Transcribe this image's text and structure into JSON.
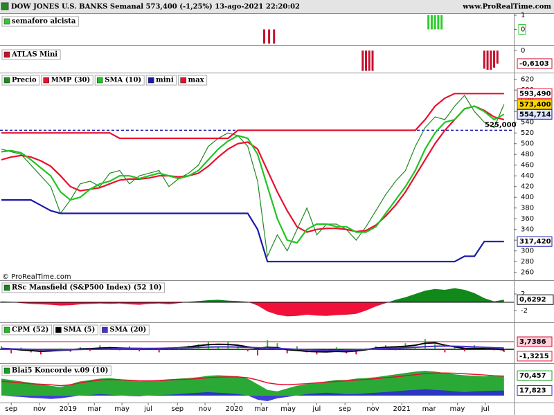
{
  "header": {
    "title": "DOW JONES U.S. BANKS Semanal 573,400 (-1,25%) 13-ago-2021 22:20:02",
    "site": "www.ProRealTime.com",
    "watermark": "© ProRealTime.com"
  },
  "x_axis": {
    "xlim": [
      0,
      156
    ],
    "xticks": [
      {
        "value": 3,
        "label": "sep"
      },
      {
        "value": 11.6,
        "label": "nov"
      },
      {
        "value": 20.3,
        "label": "2019"
      },
      {
        "value": 28.3,
        "label": "mar"
      },
      {
        "value": 36.7,
        "label": "may"
      },
      {
        "value": 44.7,
        "label": "jul"
      },
      {
        "value": 53.6,
        "label": "sep"
      },
      {
        "value": 62,
        "label": "nov"
      },
      {
        "value": 70.9,
        "label": "2020"
      },
      {
        "value": 79.1,
        "label": "mar"
      },
      {
        "value": 87.3,
        "label": "may"
      },
      {
        "value": 96,
        "label": "jul"
      },
      {
        "value": 104.6,
        "label": "sep"
      },
      {
        "value": 113.1,
        "label": "nov"
      },
      {
        "value": 121.9,
        "label": "2021"
      },
      {
        "value": 130.2,
        "label": "mar"
      },
      {
        "value": 138.8,
        "label": "may"
      },
      {
        "value": 147.3,
        "label": "jul"
      }
    ],
    "x": [
      0,
      3,
      6,
      9,
      12,
      15,
      18,
      21,
      24,
      27,
      30,
      33,
      36,
      39,
      42,
      45,
      48,
      51,
      54,
      57,
      60,
      63,
      66,
      69,
      72,
      75,
      78,
      81,
      84,
      87,
      90,
      93,
      96,
      99,
      102,
      105,
      108,
      111,
      114,
      117,
      120,
      123,
      126,
      129,
      132,
      135,
      138,
      141,
      144,
      147,
      150,
      153
    ]
  },
  "chart_data": [
    {
      "type": "bar",
      "title": "semaforo alcista",
      "color": "#2ecc2e",
      "ylim": [
        -1,
        1
      ],
      "yticks": [
        1,
        0
      ],
      "x": [
        80,
        81.5,
        83,
        130,
        131,
        132,
        133,
        134
      ],
      "values": [
        -1,
        -1,
        -1,
        1,
        1,
        1,
        1,
        1
      ],
      "colors": [
        "#c8102e",
        "#c8102e",
        "#c8102e",
        "#2ecc2e",
        "#2ecc2e",
        "#2ecc2e",
        "#2ecc2e",
        "#2ecc2e"
      ]
    },
    {
      "type": "bar",
      "title": "ATLAS Mini",
      "color": "#c8102e",
      "ylim": [
        -1,
        0.1
      ],
      "yticks": [
        0
      ],
      "x": [
        110,
        111,
        112,
        113,
        147,
        148,
        149,
        150,
        151
      ],
      "values": [
        -0.95,
        -0.95,
        -0.95,
        -0.95,
        -0.85,
        -0.9,
        -0.9,
        -0.8,
        -0.6103
      ],
      "last_label": "-0,6103"
    },
    {
      "type": "line",
      "ylim": [
        248,
        630
      ],
      "yticks": [
        260,
        280,
        300,
        320,
        340,
        360,
        380,
        400,
        420,
        440,
        460,
        480,
        500,
        520,
        540,
        560,
        580,
        600,
        620
      ],
      "hline": {
        "value": 525,
        "label": "525,000",
        "color": "#1a1aa8"
      },
      "series": [
        {
          "name": "Precio",
          "color": "#1f8a1f",
          "values": [
            490,
            485,
            480,
            460,
            440,
            420,
            370,
            395,
            425,
            430,
            420,
            445,
            450,
            425,
            440,
            445,
            450,
            420,
            435,
            445,
            460,
            495,
            510,
            520,
            515,
            495,
            430,
            290,
            330,
            300,
            340,
            380,
            330,
            350,
            350,
            340,
            320,
            345,
            375,
            405,
            430,
            450,
            495,
            530,
            550,
            545,
            570,
            590,
            560,
            540,
            530,
            573.4
          ],
          "last_label": "573,400"
        },
        {
          "name": "MMP (30)",
          "color": "#e8102e",
          "values": [
            470,
            475,
            478,
            475,
            468,
            458,
            440,
            420,
            412,
            415,
            418,
            425,
            432,
            434,
            434,
            436,
            440,
            440,
            438,
            440,
            445,
            458,
            475,
            490,
            500,
            503,
            490,
            450,
            410,
            375,
            345,
            335,
            340,
            342,
            342,
            340,
            336,
            338,
            348,
            365,
            385,
            410,
            440,
            470,
            500,
            525,
            545,
            565,
            570,
            562,
            550,
            545
          ]
        },
        {
          "name": "SMA (10)",
          "color": "#22c422",
          "values": [
            485,
            487,
            483,
            470,
            455,
            440,
            410,
            395,
            400,
            415,
            425,
            430,
            440,
            440,
            435,
            440,
            445,
            440,
            435,
            440,
            450,
            470,
            490,
            505,
            515,
            510,
            480,
            420,
            360,
            320,
            315,
            340,
            350,
            350,
            345,
            345,
            335,
            335,
            345,
            370,
            395,
            420,
            450,
            490,
            520,
            540,
            545,
            565,
            570,
            560,
            545,
            554.714
          ],
          "last_label": "554,714"
        },
        {
          "name": "mini",
          "color": "#1a1aa8",
          "values": [
            395,
            395,
            395,
            395,
            385,
            375,
            370,
            370,
            370,
            370,
            370,
            370,
            370,
            370,
            370,
            370,
            370,
            370,
            370,
            370,
            370,
            370,
            370,
            370,
            370,
            370,
            340,
            280,
            280,
            280,
            280,
            280,
            280,
            280,
            280,
            280,
            280,
            280,
            280,
            280,
            280,
            280,
            280,
            280,
            280,
            280,
            280,
            290,
            290,
            317.42,
            317.42,
            317.42
          ],
          "last_label": "317,420"
        },
        {
          "name": "max",
          "color": "#e8102e",
          "values": [
            520,
            520,
            520,
            520,
            520,
            520,
            520,
            520,
            520,
            520,
            520,
            520,
            510,
            510,
            510,
            510,
            510,
            510,
            510,
            510,
            510,
            510,
            510,
            510,
            525,
            525,
            525,
            525,
            525,
            525,
            525,
            525,
            525,
            525,
            525,
            525,
            525,
            525,
            525,
            525,
            525,
            525,
            525,
            545,
            570,
            585,
            593.49,
            593.49,
            593.49,
            593.49,
            593.49,
            593.49
          ],
          "last_label": "593,490"
        }
      ]
    },
    {
      "type": "area",
      "title": "RSc Mansfield (S&P500 Index) (52 10)",
      "ylim": [
        -5,
        5
      ],
      "yticks": [
        2,
        -2
      ],
      "color": "#11881a",
      "negative_color": "#f0103a",
      "values": [
        0.2,
        0.1,
        -0.2,
        -0.4,
        -0.5,
        -0.6,
        -0.8,
        -0.7,
        -0.5,
        -0.4,
        -0.3,
        -0.4,
        -0.3,
        -0.5,
        -0.6,
        -0.4,
        -0.3,
        -0.5,
        -0.2,
        0.1,
        0.3,
        0.5,
        0.6,
        0.4,
        0.3,
        0.1,
        -0.8,
        -2.2,
        -3,
        -3.4,
        -3.3,
        -3,
        -3.2,
        -3.3,
        -3.1,
        -3,
        -2.8,
        -2,
        -1,
        -0.2,
        0.6,
        1.2,
        2,
        2.8,
        3.2,
        3,
        3.4,
        3,
        2.2,
        1,
        0.2,
        0.6292
      ],
      "last_label": "0,6292"
    },
    {
      "type": "bar",
      "ylim": [
        -6.8,
        12.6
      ],
      "levels": [
        {
          "value": 3.7386,
          "label": "3,7386",
          "color": "#c8102e"
        }
      ],
      "series": [
        {
          "name": "CPM (52)",
          "type": "bar",
          "color": "#22bb22",
          "negative_color": "#e8102e",
          "values": [
            1.5,
            -2,
            0.8,
            -1.5,
            -2.5,
            -1,
            0.5,
            -1.2,
            1,
            -0.8,
            2,
            1.2,
            -0.5,
            1.5,
            -1,
            0.8,
            -1.5,
            1,
            0.5,
            1.8,
            2.5,
            3.5,
            1.5,
            4,
            2,
            -1,
            -3,
            4.5,
            3,
            -2,
            1.5,
            -1.5,
            -2.5,
            -1,
            1,
            -2,
            -2.5,
            0.5,
            1.5,
            2,
            -0.5,
            3,
            1,
            5,
            2.5,
            -1.5,
            1,
            -1,
            2,
            0.5,
            -0.5,
            -1.3215
          ],
          "last_label": "-1,3215"
        },
        {
          "name": "SMA (5)",
          "type": "line",
          "color": "#000000",
          "values": [
            0.5,
            0.2,
            -0.3,
            -0.6,
            -1,
            -0.8,
            -0.5,
            -0.3,
            0.2,
            0.3,
            0.6,
            0.8,
            0.6,
            0.5,
            0.4,
            0.2,
            0.3,
            0.5,
            0.8,
            1.2,
            1.8,
            2.3,
            2.5,
            2.4,
            2,
            1.2,
            0.5,
            1,
            0.8,
            -0.2,
            -0.5,
            -1,
            -1.2,
            -1.3,
            -1,
            -1.2,
            -0.8,
            -0.2,
            0.6,
            1,
            1.2,
            1.5,
            2,
            3,
            3.2,
            2,
            1.2,
            0.5,
            0.4,
            0.3,
            0.2,
            -0.3
          ]
        },
        {
          "name": "SMA (20)",
          "type": "line",
          "color": "#4a2fc8",
          "values": [
            0.3,
            0.2,
            0.1,
            0,
            -0.2,
            -0.3,
            -0.3,
            -0.2,
            -0.1,
            0,
            0.1,
            0.2,
            0.3,
            0.3,
            0.4,
            0.4,
            0.5,
            0.6,
            0.7,
            0.8,
            1,
            1.1,
            1.2,
            1.2,
            1.1,
            1,
            0.8,
            0.6,
            0.4,
            0.2,
            0,
            -0.2,
            -0.4,
            -0.5,
            -0.5,
            -0.4,
            -0.2,
            0,
            0.2,
            0.4,
            0.6,
            0.8,
            1,
            1.3,
            1.5,
            1.6,
            1.5,
            1.4,
            1.2,
            1,
            0.8,
            0.6
          ]
        }
      ]
    },
    {
      "type": "area",
      "title": "Blai5 Koncorde v.09 (10)",
      "ylim": [
        -25,
        110
      ],
      "series": [
        {
          "type": "area",
          "color": "#14a020",
          "values": [
            60,
            55,
            50,
            45,
            40,
            35,
            30,
            40,
            50,
            55,
            60,
            62,
            58,
            55,
            50,
            52,
            55,
            58,
            60,
            62,
            65,
            70,
            72,
            70,
            68,
            60,
            40,
            20,
            15,
            25,
            35,
            40,
            45,
            50,
            55,
            55,
            60,
            62,
            65,
            70,
            75,
            80,
            85,
            88,
            85,
            80,
            75,
            72,
            70,
            68,
            70,
            70.457
          ],
          "last_label": "70,457"
        },
        {
          "type": "area",
          "color": "#2a2ad0",
          "values": [
            0,
            -3,
            -5,
            -8,
            -10,
            -12,
            -10,
            -5,
            0,
            2,
            5,
            3,
            0,
            -2,
            -3,
            0,
            2,
            3,
            5,
            8,
            10,
            12,
            10,
            8,
            5,
            0,
            -15,
            -20,
            -10,
            -5,
            0,
            5,
            8,
            10,
            8,
            5,
            5,
            8,
            10,
            12,
            15,
            18,
            20,
            22,
            20,
            18,
            15,
            12,
            15,
            16,
            17,
            17.823
          ],
          "last_label": "17,823"
        },
        {
          "type": "line",
          "color": "#e8102e",
          "values": [
            50,
            48,
            45,
            42,
            40,
            38,
            35,
            38,
            45,
            50,
            55,
            57,
            56,
            54,
            52,
            52,
            53,
            55,
            57,
            58,
            60,
            63,
            65,
            66,
            66,
            63,
            55,
            45,
            40,
            38,
            40,
            42,
            45,
            48,
            50,
            52,
            55,
            57,
            60,
            63,
            66,
            70,
            74,
            78,
            80,
            80,
            79,
            77,
            75,
            73,
            70,
            69
          ]
        }
      ]
    }
  ]
}
